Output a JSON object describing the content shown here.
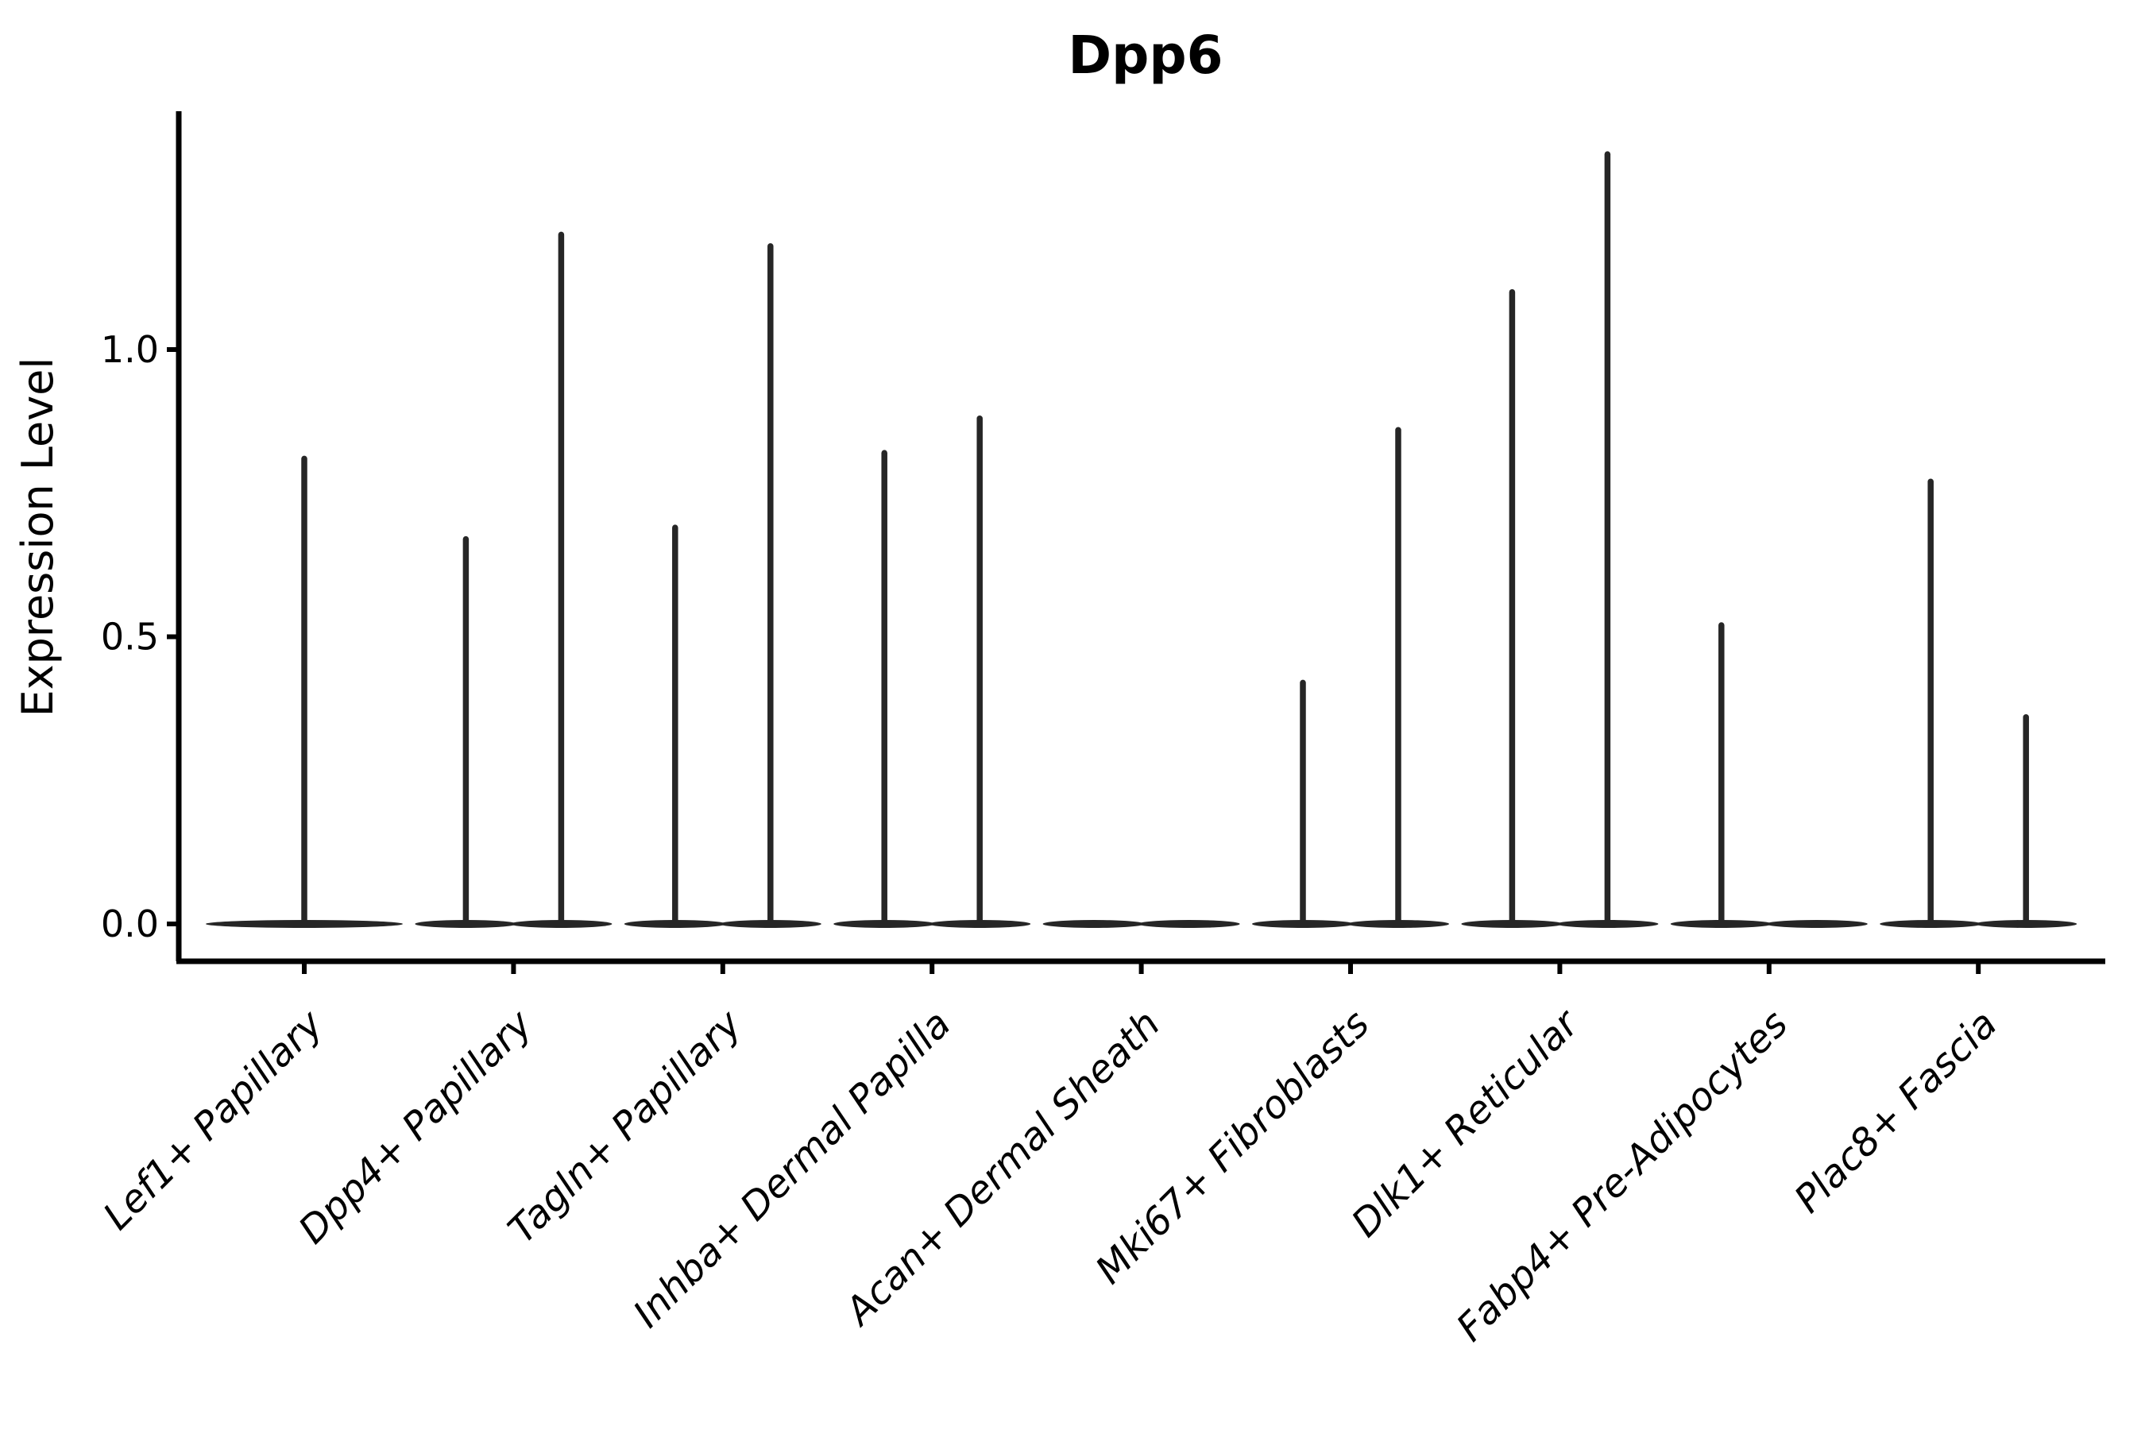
{
  "figure": {
    "background": "#ffffff"
  },
  "chart_data": {
    "type": "violin",
    "title": "Dpp6",
    "ylabel": "Expression Level",
    "xlabel": "",
    "grid": false,
    "legend": null,
    "ylim": [
      -0.07,
      1.42
    ],
    "ytick_labels": [
      "0.0",
      "0.5",
      "1.0"
    ],
    "ytick_values": [
      0.0,
      0.5,
      1.0
    ],
    "categories": [
      "Lef1+ Papillary",
      "Dpp4+ Papillary",
      "Tagln+ Papillary",
      "Inhba+ Dermal Papilla",
      "Acan+ Dermal Sheath",
      "Mki67+ Fibroblasts",
      "Dlk1+ Reticular",
      "Fabp4+ Pre-Adipocytes",
      "Plac8+ Fascia"
    ],
    "violins": [
      {
        "category": "Lef1+ Papillary",
        "layout": "single",
        "groups": [
          {
            "slot": "center",
            "max_expression": 0.81
          }
        ]
      },
      {
        "category": "Dpp4+ Papillary",
        "layout": "pair",
        "groups": [
          {
            "slot": "left",
            "max_expression": 0.67
          },
          {
            "slot": "right",
            "max_expression": 1.2
          }
        ]
      },
      {
        "category": "Tagln+ Papillary",
        "layout": "pair",
        "groups": [
          {
            "slot": "left",
            "max_expression": 0.69
          },
          {
            "slot": "right",
            "max_expression": 1.18
          }
        ]
      },
      {
        "category": "Inhba+ Dermal Papilla",
        "layout": "pair",
        "groups": [
          {
            "slot": "left",
            "max_expression": 0.82
          },
          {
            "slot": "right",
            "max_expression": 0.88
          }
        ]
      },
      {
        "category": "Acan+ Dermal Sheath",
        "layout": "pair",
        "groups": [
          {
            "slot": "left",
            "max_expression": 0.0
          },
          {
            "slot": "right",
            "max_expression": 0.0
          }
        ]
      },
      {
        "category": "Mki67+ Fibroblasts",
        "layout": "pair",
        "groups": [
          {
            "slot": "left",
            "max_expression": 0.42
          },
          {
            "slot": "right",
            "max_expression": 0.86
          }
        ]
      },
      {
        "category": "Dlk1+ Reticular",
        "layout": "pair",
        "groups": [
          {
            "slot": "left",
            "max_expression": 1.1
          },
          {
            "slot": "right",
            "max_expression": 1.34
          }
        ]
      },
      {
        "category": "Fabp4+ Pre-Adipocytes",
        "layout": "pair",
        "groups": [
          {
            "slot": "left",
            "max_expression": 0.52
          },
          {
            "slot": "right",
            "max_expression": 0.0
          }
        ]
      },
      {
        "category": "Plac8+ Fascia",
        "layout": "pair",
        "groups": [
          {
            "slot": "left",
            "max_expression": 0.77
          },
          {
            "slot": "right",
            "max_expression": 0.36
          }
        ]
      }
    ],
    "colors": {
      "violin_line": "#262626",
      "axis": "#000000",
      "text": "#000000",
      "background": "#ffffff"
    }
  }
}
